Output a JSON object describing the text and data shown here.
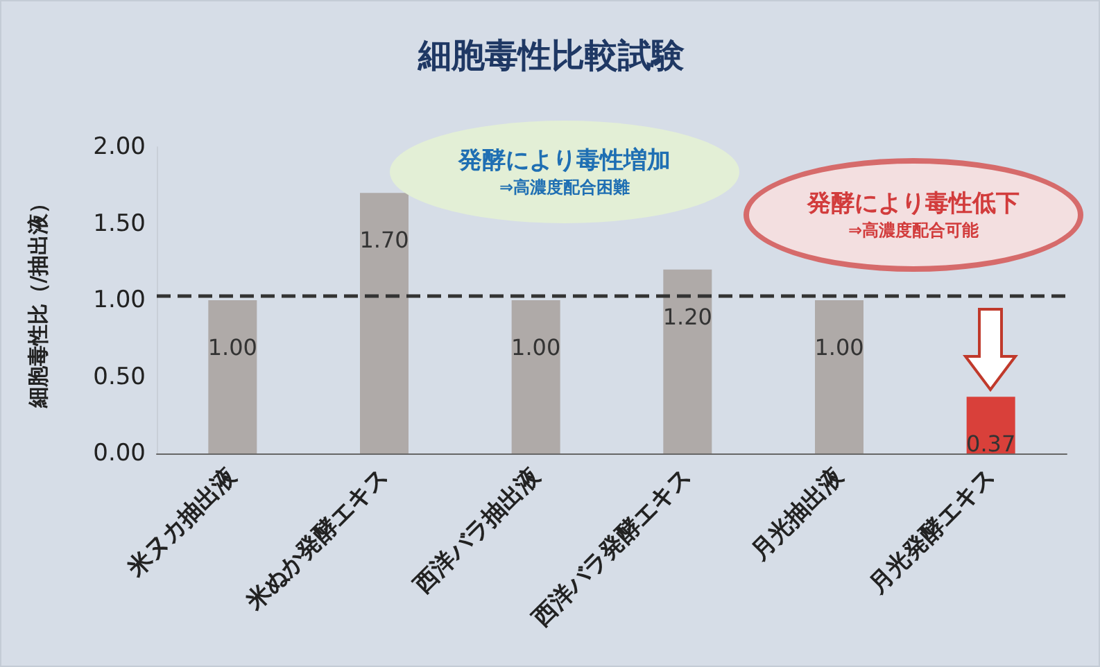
{
  "chart_data": {
    "type": "bar",
    "title": "細胞毒性比較試験",
    "ylabel": "細胞毒性比（/抽出液）",
    "categories": [
      "米ヌカ抽出液",
      "米ぬか発酵エキス",
      "西洋バラ抽出液",
      "西洋バラ発酵エキス",
      "月光抽出液",
      "月光発酵エキス"
    ],
    "values": [
      1.0,
      1.7,
      1.0,
      1.2,
      1.0,
      0.37
    ],
    "colors": [
      "#afaaa8",
      "#afaaa8",
      "#afaaa8",
      "#afaaa8",
      "#afaaa8",
      "#d9403a"
    ],
    "value_labels": [
      "1.00",
      "1.70",
      "1.00",
      "1.20",
      "1.00",
      "0.37"
    ],
    "ylim": [
      0,
      2
    ],
    "yticks": [
      {
        "value": 0,
        "label": "0.00"
      },
      {
        "value": 0.5,
        "label": "0.50"
      },
      {
        "value": 1,
        "label": "1.00"
      },
      {
        "value": 1.5,
        "label": "1.50"
      },
      {
        "value": 2,
        "label": "2.00"
      }
    ],
    "ref_lines": [
      {
        "axis": "y",
        "value": 1.03,
        "color": "#333333",
        "line_style": "dashed"
      }
    ],
    "annotations": [
      "発酵により毒性増加",
      "⇒高濃度配合困難",
      "発酵により毒性低下",
      "⇒高濃度配合可能"
    ]
  }
}
